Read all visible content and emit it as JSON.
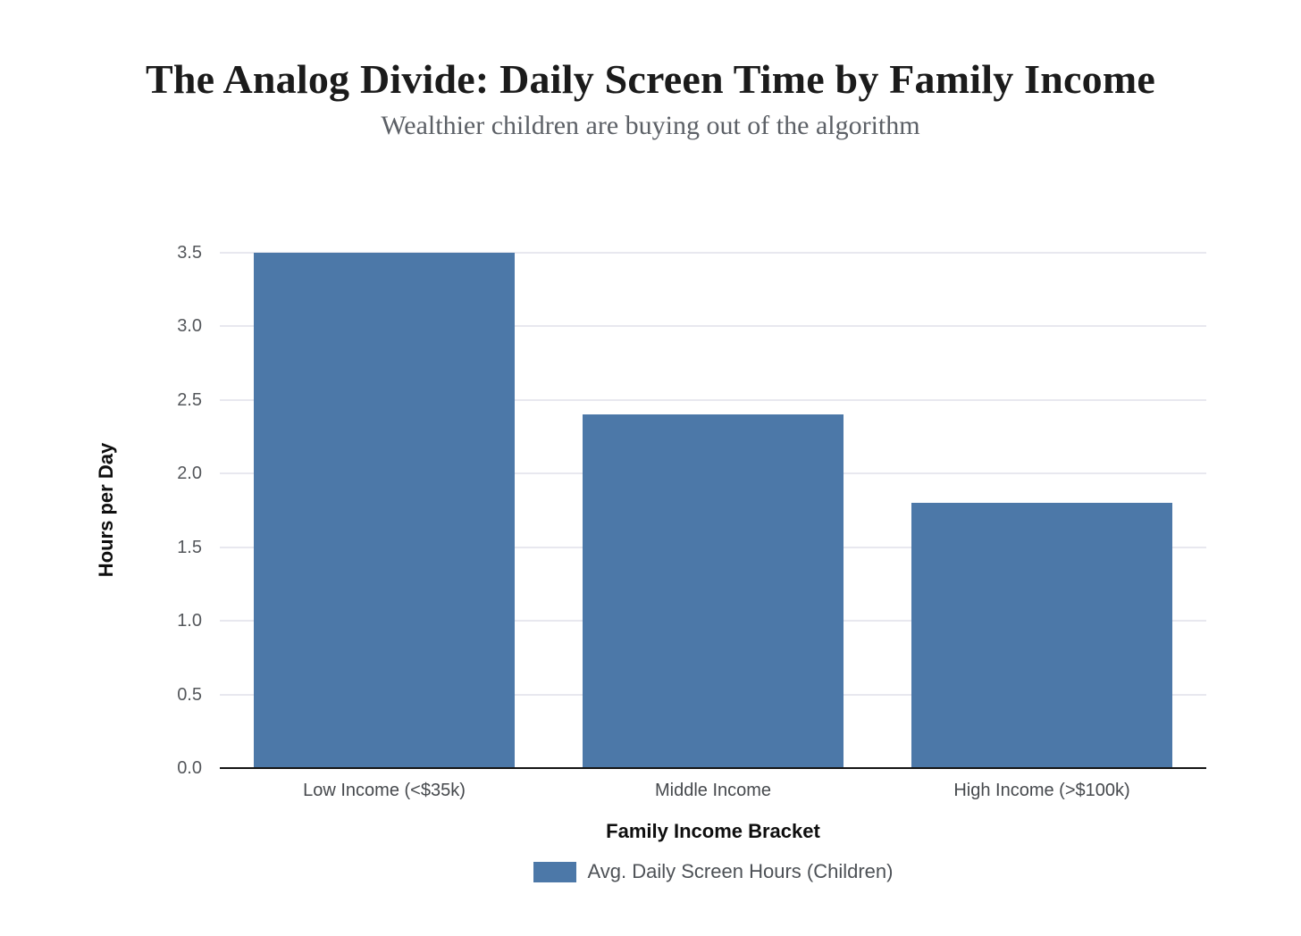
{
  "chart_data": {
    "type": "bar",
    "title": "The Analog Divide: Daily Screen Time by Family Income",
    "subtitle": "Wealthier children are buying out of the algorithm",
    "categories": [
      "Low Income (<$35k)",
      "Middle Income",
      "High Income (>$100k)"
    ],
    "values": [
      3.5,
      2.4,
      1.8
    ],
    "series_name": "Avg. Daily Screen Hours (Children)",
    "xlabel": "Family Income Bracket",
    "ylabel": "Hours per Day",
    "ylim": [
      0,
      3.5
    ],
    "yticks": [
      0.0,
      0.5,
      1.0,
      1.5,
      2.0,
      2.5,
      3.0,
      3.5
    ],
    "grid": true,
    "legend_position": "bottom",
    "colors": {
      "bar": "#4C78A8",
      "gridline": "#e8e8ef",
      "axis_line": "#141414",
      "tick_label": "#54575b",
      "category_label": "#46494d",
      "axis_title": "#0e0e0e",
      "title": "#1b1b1b",
      "subtitle": "#5c6066",
      "legend_text": "#4d5156"
    }
  }
}
